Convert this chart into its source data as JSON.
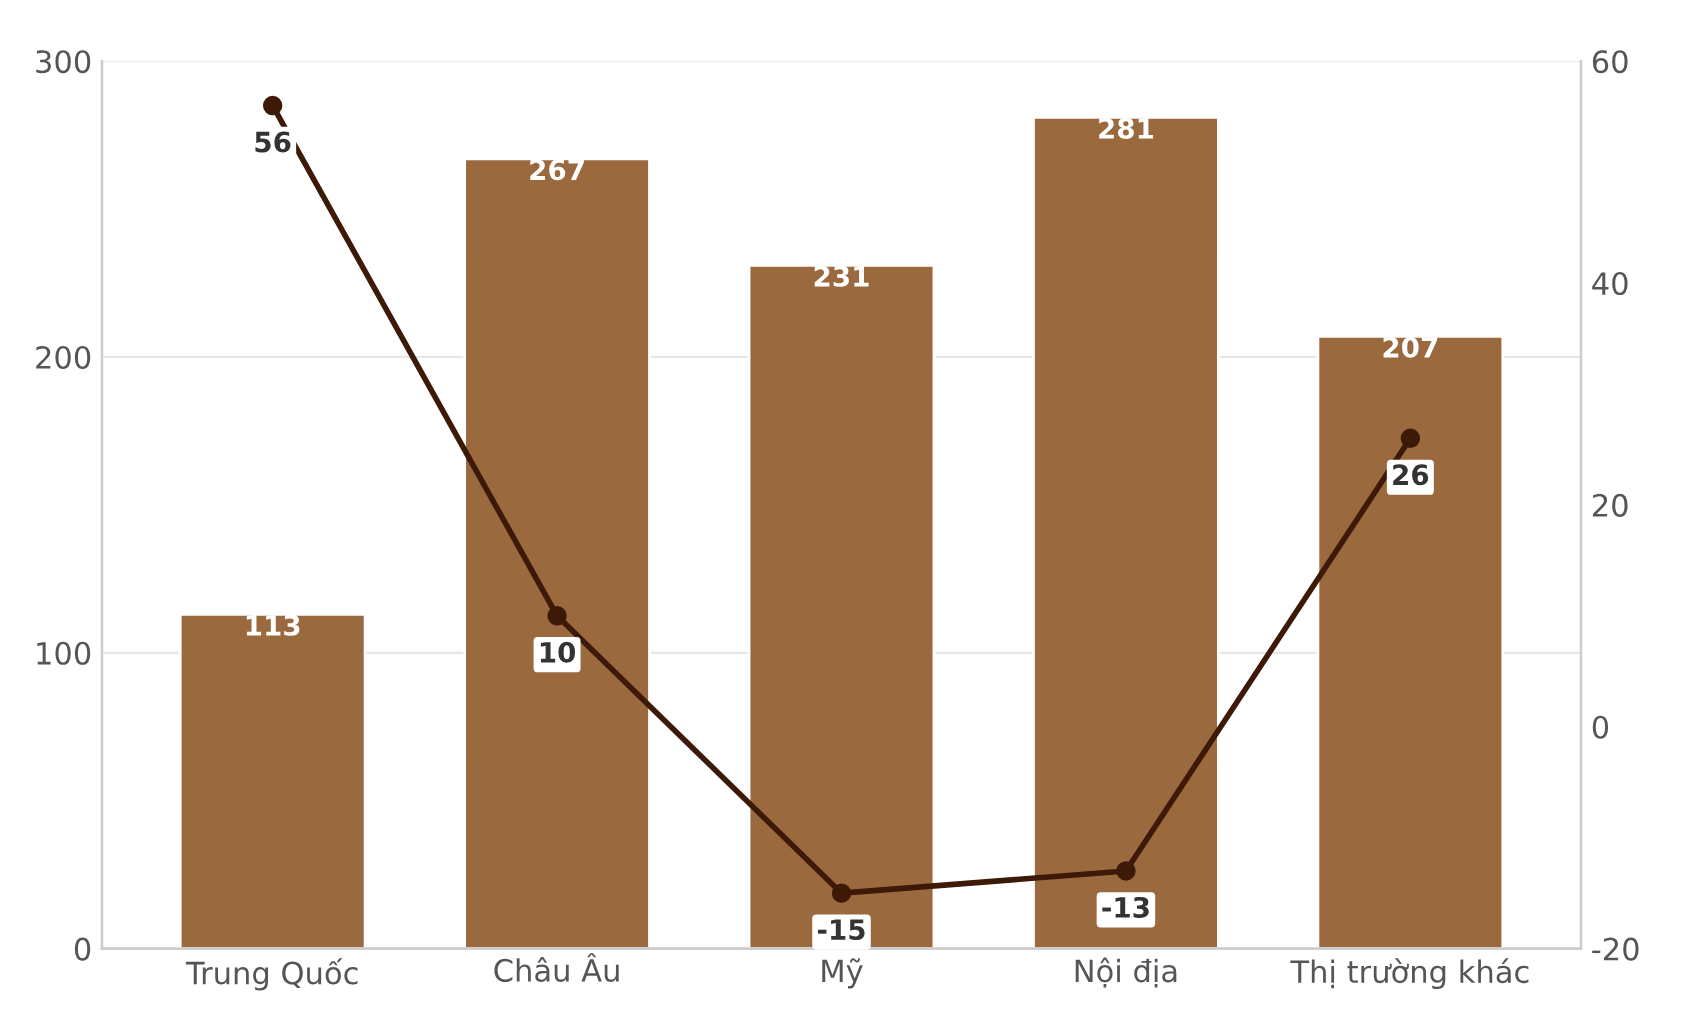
{
  "chart_data": {
    "type": "bar",
    "categories": [
      "Trung Quốc",
      "Châu Âu",
      "Mỹ",
      "Nội địa",
      "Thị trường khác"
    ],
    "series": [
      {
        "color": "#9a6a3e",
        "values": [
          113,
          267,
          231,
          281,
          207
        ]
      },
      {
        "type": "line",
        "axis": "y2",
        "color": "#3d1a08",
        "marker": "circle",
        "values": [
          56,
          10,
          -15,
          -13,
          26
        ]
      }
    ],
    "ylim": [
      0,
      300
    ],
    "yticks": [
      0,
      100,
      200,
      300
    ],
    "y2lim": [
      -20,
      60
    ],
    "y2ticks": [
      -20,
      0,
      20,
      40,
      60
    ],
    "grid": "y",
    "data_labels": true,
    "legend": false
  }
}
